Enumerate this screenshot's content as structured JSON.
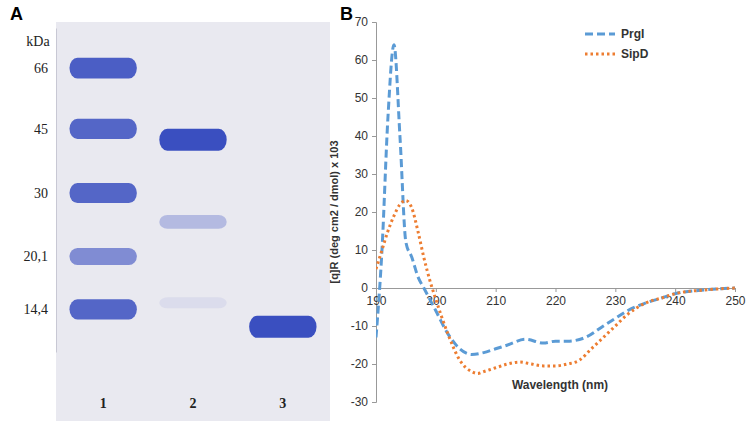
{
  "chart_data": [
    {
      "type": "gel",
      "title": "A",
      "y_label": "kDa",
      "categories": [
        "1",
        "2",
        "3"
      ],
      "lanes": [
        {
          "values": [
            66,
            45,
            30,
            20.1,
            14.4
          ],
          "intensity": [
            0.9,
            0.85,
            0.85,
            0.6,
            0.85
          ]
        },
        {
          "values": [
            42,
            25,
            15
          ],
          "intensity": [
            1,
            0.3,
            0.08
          ]
        },
        {
          "values": [
            12.9
          ],
          "intensity": [
            1
          ]
        }
      ],
      "log": "y",
      "ylim": [
        11,
        85
      ],
      "yticks": [
        66,
        45,
        30,
        {
          "value": 20.1,
          "label": "20,1"
        },
        {
          "value": 14.4,
          "label": "14,4"
        }
      ],
      "color": "#3a4fc0"
    },
    {
      "type": "line",
      "title": "B",
      "x_label": "Wavelength (nm)",
      "y_label": "[q]R (deg cm2 / dmol) x 103",
      "xlim": [
        190,
        250
      ],
      "xticks": [
        190,
        200,
        210,
        220,
        230,
        240,
        250
      ],
      "ylim": [
        -30,
        70
      ],
      "yticks": [
        -30,
        -20,
        -10,
        0,
        10,
        20,
        30,
        40,
        50,
        60,
        70
      ],
      "grid": false,
      "legend": "upper right",
      "series": [
        {
          "name": "PrgI",
          "color": "#5b9bd5",
          "line_style": "dashed",
          "x": [
            190,
            191,
            192,
            193,
            194,
            195,
            196,
            197,
            198,
            200,
            202,
            204,
            206,
            208,
            210,
            212,
            215,
            218,
            220,
            222,
            225,
            228,
            230,
            232,
            235,
            238,
            240,
            245,
            250
          ],
          "values": [
            -13,
            10,
            45,
            64,
            40,
            12,
            8,
            3,
            0,
            -6,
            -12,
            -16,
            -17.5,
            -17,
            -16,
            -15,
            -13.5,
            -14.5,
            -14,
            -14,
            -13,
            -10,
            -8,
            -6,
            -4,
            -2.5,
            -1.5,
            -0.5,
            0
          ]
        },
        {
          "name": "SipD",
          "color": "#ed7d31",
          "line_style": "dotted",
          "x": [
            190,
            191,
            192,
            193,
            194,
            195,
            196,
            197,
            198,
            199,
            200,
            202,
            204,
            206,
            207,
            208,
            210,
            212,
            214,
            216,
            218,
            220,
            222,
            224,
            226,
            228,
            230,
            232,
            235,
            238,
            240,
            245,
            250
          ],
          "values": [
            5,
            10,
            15,
            19,
            22,
            23,
            21,
            15,
            8,
            2,
            -3,
            -12,
            -19,
            -22,
            -22.5,
            -22,
            -21,
            -20,
            -19.5,
            -20,
            -20.5,
            -20.5,
            -20,
            -19,
            -16,
            -13,
            -10,
            -7,
            -4,
            -2.5,
            -1.5,
            -0.5,
            0
          ]
        }
      ]
    }
  ]
}
